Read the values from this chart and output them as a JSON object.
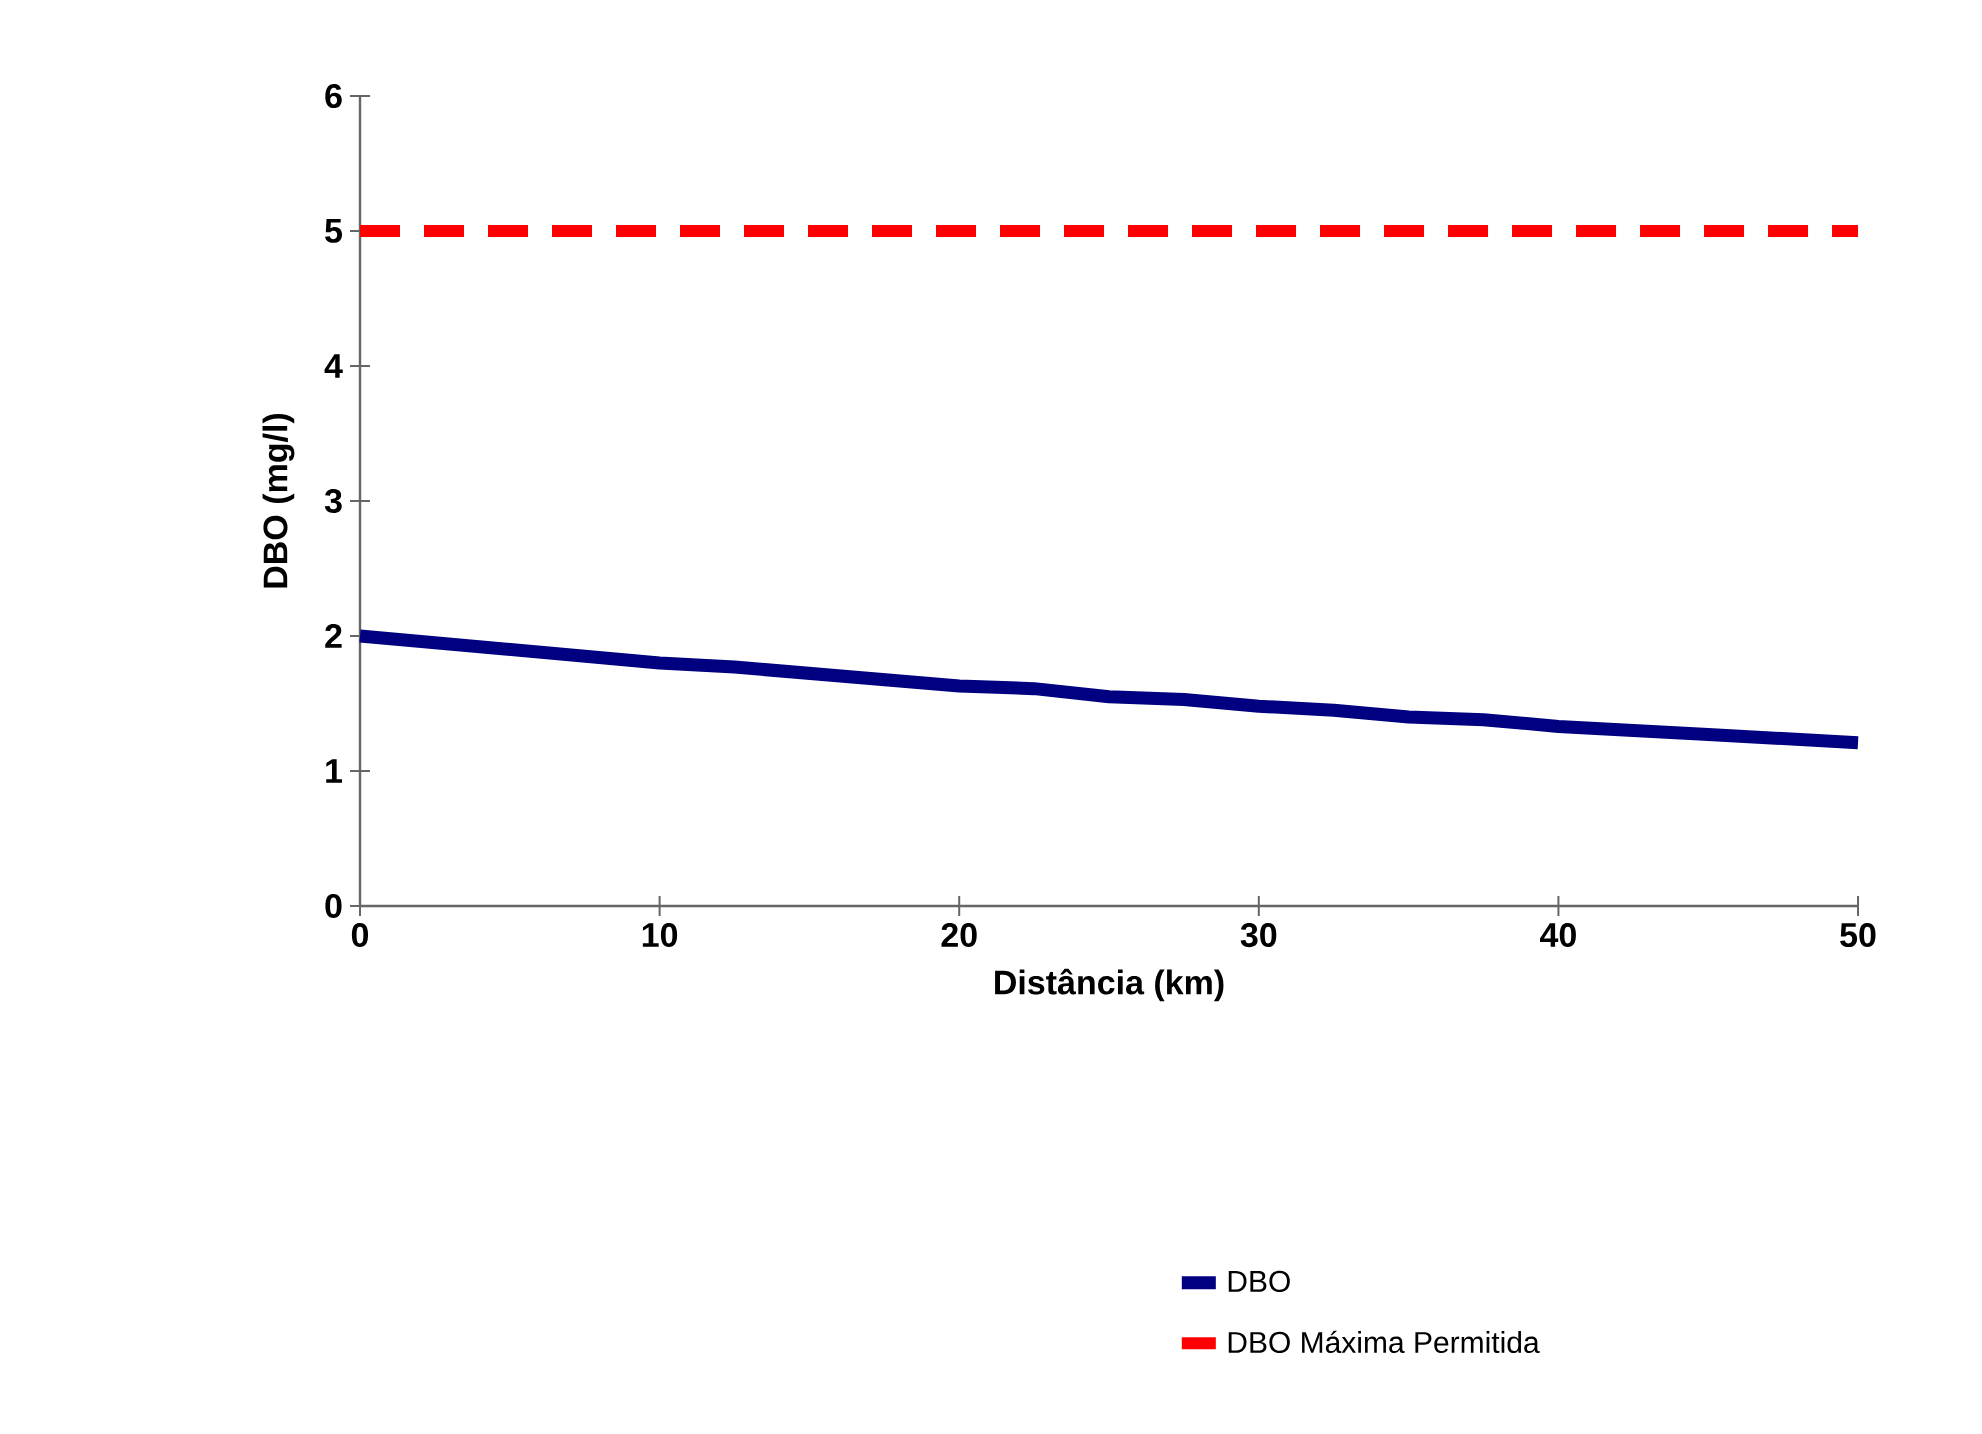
{
  "chart_data": {
    "type": "line",
    "xlabel": "Distância (km)",
    "ylabel": "DBO (mg/l)",
    "xlim": [
      0,
      50
    ],
    "ylim": [
      0,
      6
    ],
    "xticks": [
      0,
      10,
      20,
      30,
      40,
      50
    ],
    "yticks": [
      0,
      1,
      2,
      3,
      4,
      5,
      6
    ],
    "legend": "bottom right",
    "series": [
      {
        "name": "DBO",
        "color": "#000080",
        "line_style": "solid",
        "x": [
          0,
          10,
          12.5,
          20,
          22.5,
          25,
          27.5,
          30,
          32.5,
          35,
          37.5,
          40,
          45,
          50
        ],
        "values": [
          2.0,
          1.8,
          1.77,
          1.63,
          1.61,
          1.55,
          1.53,
          1.48,
          1.45,
          1.4,
          1.38,
          1.33,
          1.27,
          1.21
        ]
      },
      {
        "name": "DBO Máxima Permitida",
        "color": "#ff0000",
        "line_style": "dashed",
        "x": [
          0,
          50
        ],
        "values": [
          5,
          5
        ]
      }
    ]
  }
}
